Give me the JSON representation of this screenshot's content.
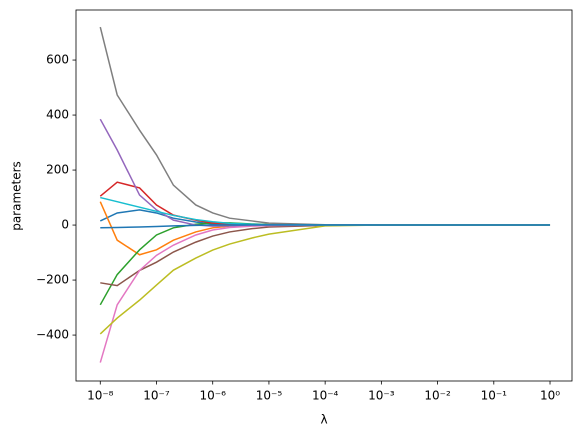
{
  "chart_data": {
    "type": "line",
    "x_label": "λ",
    "y_label": "parameters",
    "xscale": "log",
    "x": [
      1e-08,
      2e-08,
      5e-08,
      1e-07,
      2e-07,
      5e-07,
      1e-06,
      2e-06,
      5e-06,
      1e-05,
      0.0001,
      0.001,
      0.01,
      0.1,
      1
    ],
    "series": [
      {
        "color": "#1f77b4",
        "values": [
          15,
          44,
          55,
          44,
          25,
          11,
          4,
          1,
          0,
          0,
          0,
          0,
          0,
          0,
          0
        ]
      },
      {
        "color": "#ff7f0e",
        "values": [
          85,
          -55,
          -108,
          -90,
          -55,
          -25,
          -10,
          -4,
          -1,
          0,
          0,
          0,
          0,
          0,
          0
        ]
      },
      {
        "color": "#2ca02c",
        "values": [
          -290,
          -180,
          -90,
          -36,
          -10,
          3,
          8,
          8,
          4,
          2,
          0,
          0,
          0,
          0,
          0
        ]
      },
      {
        "color": "#d62728",
        "values": [
          105,
          156,
          135,
          73,
          36,
          18,
          7,
          4,
          2,
          1,
          0,
          0,
          0,
          0,
          0
        ]
      },
      {
        "color": "#9467bd",
        "values": [
          385,
          273,
          109,
          55,
          18,
          0,
          -4,
          -3,
          -1,
          0,
          0,
          0,
          0,
          0,
          0
        ]
      },
      {
        "color": "#8c564b",
        "values": [
          -210,
          -220,
          -165,
          -135,
          -98,
          -62,
          -40,
          -25,
          -13,
          -7,
          -1,
          0,
          0,
          0,
          0
        ]
      },
      {
        "color": "#e377c2",
        "values": [
          -500,
          -290,
          -165,
          -110,
          -73,
          -36,
          -18,
          -9,
          -4,
          -2,
          0,
          0,
          0,
          0,
          0
        ]
      },
      {
        "color": "#7f7f7f",
        "values": [
          720,
          473,
          345,
          255,
          145,
          73,
          44,
          25,
          15,
          7,
          1,
          0,
          0,
          0,
          0
        ]
      },
      {
        "color": "#bcbd22",
        "values": [
          -396,
          -338,
          -273,
          -218,
          -164,
          -120,
          -91,
          -69,
          -47,
          -33,
          -3,
          0,
          0,
          0,
          0
        ]
      },
      {
        "color": "#17becf",
        "values": [
          100,
          85,
          65,
          50,
          35,
          20,
          12,
          6,
          3,
          1,
          0,
          0,
          0,
          0,
          0
        ]
      },
      {
        "color": "#1f77b4",
        "values": [
          -10,
          -9,
          -7,
          -5,
          -3,
          -1,
          0,
          0,
          0,
          0,
          0,
          0,
          0,
          0,
          0
        ]
      }
    ],
    "xlim": [
      3.7e-09,
      2.46
    ],
    "xticks": [
      {
        "value": 1e-08,
        "label": "10⁻⁸"
      },
      {
        "value": 1e-07,
        "label": "10⁻⁷"
      },
      {
        "value": 1e-06,
        "label": "10⁻⁶"
      },
      {
        "value": 1e-05,
        "label": "10⁻⁵"
      },
      {
        "value": 0.0001,
        "label": "10⁻⁴"
      },
      {
        "value": 0.001,
        "label": "10⁻³"
      },
      {
        "value": 0.01,
        "label": "10⁻²"
      },
      {
        "value": 0.1,
        "label": "10⁻¹"
      },
      {
        "value": 1,
        "label": "10⁰"
      }
    ],
    "ylim": [
      -567,
      782
    ],
    "yticks": [
      {
        "value": -400,
        "label": "−400"
      },
      {
        "value": -200,
        "label": "−200"
      },
      0,
      200,
      400,
      600
    ]
  }
}
